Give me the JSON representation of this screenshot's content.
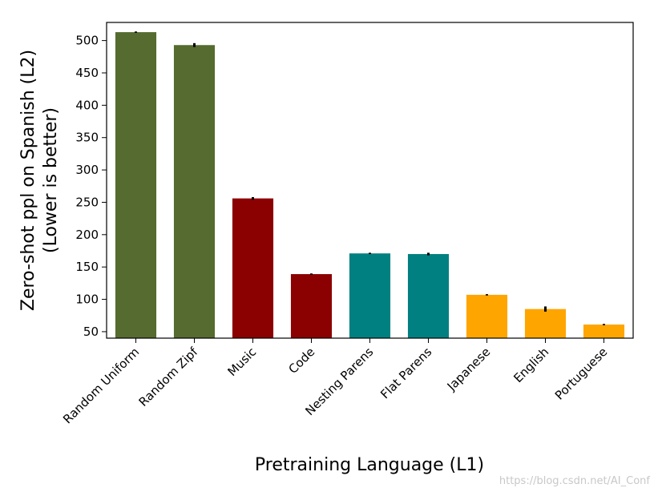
{
  "chart_data": {
    "type": "bar",
    "xlabel": "Pretraining Language (L1)",
    "ylabel_lines": [
      "Zero-shot ppl on Spanish (L2)",
      "(Lower is better)"
    ],
    "ylim": [
      40,
      528
    ],
    "yticks": [
      50,
      100,
      150,
      200,
      250,
      300,
      350,
      400,
      450,
      500
    ],
    "grid": false,
    "categories": [
      "Random Uniform",
      "Random Zipf",
      "Music",
      "Code",
      "Nesting Parens",
      "Flat Parens",
      "Japanese",
      "English",
      "Portuguese"
    ],
    "values": [
      513,
      493,
      256,
      139,
      171,
      170,
      107,
      85,
      61
    ],
    "errors": [
      1,
      3,
      2,
      1,
      1,
      2,
      1,
      4,
      1
    ],
    "colors": [
      "#556b2f",
      "#556b2f",
      "#8b0000",
      "#8b0000",
      "#008080",
      "#008080",
      "#ffa500",
      "#ffa500",
      "#ffa500"
    ]
  },
  "watermark": "https://blog.csdn.net/AI_Conf"
}
